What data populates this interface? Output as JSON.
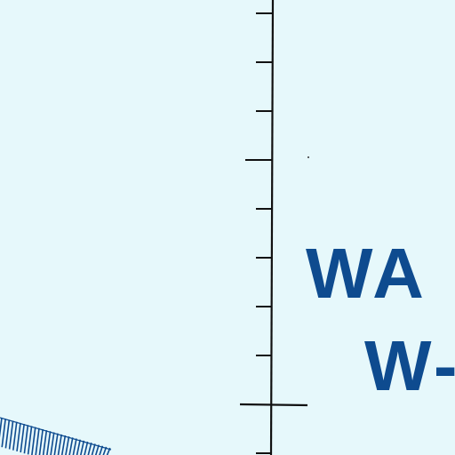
{
  "map": {
    "background_color": "#e6f8fb",
    "line_color": "#111111",
    "label_color": "#0e4b8f",
    "hatch_color": "#0e4b8f",
    "area_label": {
      "line1": "WA",
      "line2": "W-"
    }
  }
}
